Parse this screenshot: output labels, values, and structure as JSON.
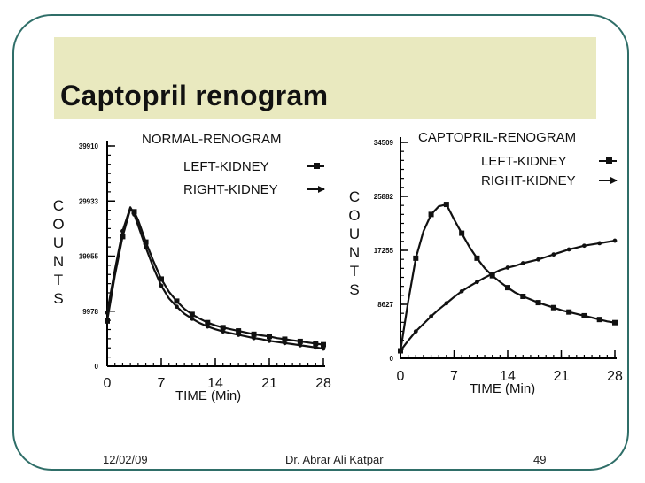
{
  "slide": {
    "title": "Captopril renogram",
    "footer_date": "12/02/09",
    "footer_author": "Dr. Abrar Ali Katpar",
    "page_number": "49"
  },
  "chart_data": [
    {
      "type": "line",
      "title": "NORMAL-RENOGRAM",
      "xlabel": "TIME (Min)",
      "ylabel": "COUNTS",
      "xlim": [
        0,
        28
      ],
      "ylim": [
        0,
        39910
      ],
      "x_ticks": [
        "0",
        "7",
        "14",
        "21",
        "28"
      ],
      "y_ticks": [
        "0",
        "9978",
        "19955",
        "29933",
        "39910"
      ],
      "legend_position": "top-right",
      "series": [
        {
          "name": "LEFT-KIDNEY",
          "marker": "square",
          "x": [
            0,
            1,
            2,
            3,
            3.5,
            4,
            5,
            6,
            7,
            8,
            9,
            10,
            11,
            12,
            13,
            14,
            15,
            16,
            17,
            18,
            19,
            20,
            21,
            22,
            23,
            24,
            25,
            26,
            27,
            28
          ],
          "y": [
            8200,
            16500,
            23500,
            28500,
            28000,
            26500,
            22500,
            19000,
            15800,
            13500,
            11800,
            10400,
            9400,
            8600,
            7900,
            7400,
            7000,
            6700,
            6400,
            6100,
            5800,
            5600,
            5400,
            5100,
            4900,
            4700,
            4500,
            4300,
            4100,
            3900
          ]
        },
        {
          "name": "RIGHT-KIDNEY",
          "marker": "arrow",
          "x": [
            0,
            1,
            2,
            3,
            3.5,
            4,
            5,
            6,
            7,
            8,
            9,
            10,
            11,
            12,
            13,
            14,
            15,
            16,
            17,
            18,
            19,
            20,
            21,
            22,
            23,
            24,
            25,
            26,
            27,
            28
          ],
          "y": [
            9700,
            17500,
            24500,
            28800,
            27500,
            25500,
            21500,
            17800,
            14600,
            12300,
            10800,
            9500,
            8600,
            7800,
            7200,
            6700,
            6300,
            6000,
            5700,
            5400,
            5100,
            4900,
            4600,
            4400,
            4200,
            4000,
            3800,
            3600,
            3400,
            3200
          ]
        }
      ]
    },
    {
      "type": "line",
      "title": "CAPTOPRIL-RENOGRAM",
      "xlabel": "TIME (Min)",
      "ylabel": "COUNTS",
      "xlim": [
        0,
        28
      ],
      "ylim": [
        0,
        34509
      ],
      "x_ticks": [
        "0",
        "7",
        "14",
        "21",
        "28"
      ],
      "y_ticks": [
        "0",
        "8627",
        "17255",
        "25882",
        "34509"
      ],
      "legend_position": "top-right",
      "series": [
        {
          "name": "LEFT-KIDNEY",
          "marker": "square",
          "x": [
            0,
            1,
            2,
            3,
            4,
            5,
            6,
            7,
            8,
            9,
            10,
            11,
            12,
            13,
            14,
            15,
            16,
            17,
            18,
            19,
            20,
            21,
            22,
            23,
            24,
            25,
            26,
            27,
            28
          ],
          "y": [
            1200,
            9000,
            16000,
            20300,
            23000,
            24300,
            24600,
            22200,
            20000,
            17800,
            16000,
            14400,
            13200,
            12200,
            11300,
            10500,
            9900,
            9400,
            8900,
            8500,
            8100,
            7700,
            7400,
            7100,
            6800,
            6500,
            6200,
            5900,
            5700
          ]
        },
        {
          "name": "RIGHT-KIDNEY",
          "marker": "arrow",
          "x": [
            0,
            1,
            2,
            3,
            4,
            5,
            6,
            7,
            8,
            9,
            10,
            11,
            12,
            13,
            14,
            15,
            16,
            17,
            18,
            19,
            20,
            21,
            22,
            23,
            24,
            25,
            26,
            27,
            28
          ],
          "y": [
            1200,
            2800,
            4300,
            5500,
            6700,
            7800,
            8800,
            9800,
            10700,
            11500,
            12200,
            12900,
            13500,
            14100,
            14500,
            14800,
            15200,
            15500,
            15800,
            16200,
            16600,
            17000,
            17400,
            17700,
            18000,
            18200,
            18400,
            18600,
            18800
          ]
        }
      ]
    }
  ]
}
